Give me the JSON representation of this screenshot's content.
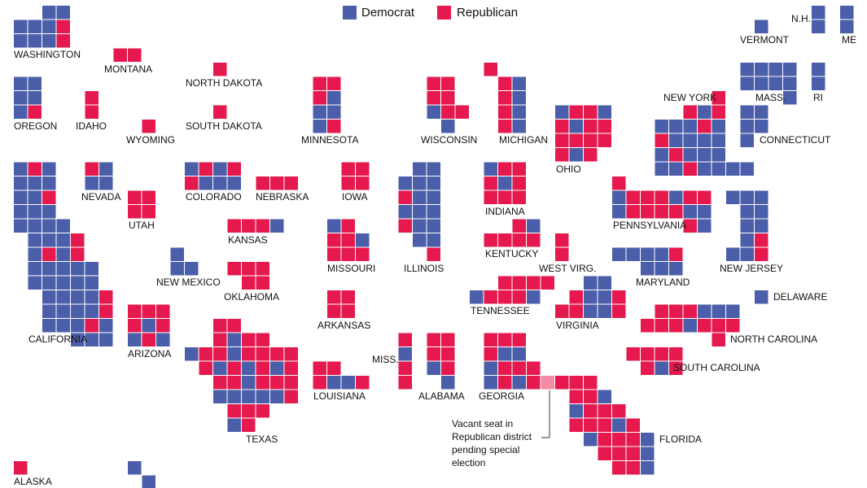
{
  "legend": [
    {
      "label": "Democrat",
      "color": "#4b5ea9"
    },
    {
      "label": "Republican",
      "color": "#e5194d"
    }
  ],
  "vacant_color": "#f48aa4",
  "states": [
    "WASHINGTON",
    "MONTANA",
    "NORTH DAKOTA",
    "OREGON",
    "IDAHO",
    "SOUTH DAKOTA",
    "WYOMING",
    "MINNESOTA",
    "WISCONSIN",
    "MICHIGAN",
    "VERMONT",
    "N.H.",
    "ME",
    "MASS.",
    "RI",
    "NEW YORK",
    "CONNECTICUT",
    "OHIO",
    "NEVADA",
    "COLORADO",
    "NEBRASKA",
    "IOWA",
    "INDIANA",
    "UTAH",
    "PENNSYLVANIA",
    "KANSAS",
    "KENTUCKY",
    "WEST VIRG.",
    "MISSOURI",
    "ILLINOIS",
    "NEW JERSEY",
    "NEW MEXICO",
    "MARYLAND",
    "OKLAHOMA",
    "DELAWARE",
    "TENNESSEE",
    "ARKANSAS",
    "VIRGINIA",
    "CALIFORNIA",
    "NORTH CAROLINA",
    "ARIZONA",
    "MISS.",
    "SOUTH CAROLINA",
    "LOUISIANA",
    "ALABAMA",
    "GEORGIA",
    "TEXAS",
    "FLORIDA",
    "ALASKA"
  ],
  "annotation": [
    "Vacant seat in",
    "Republican district",
    "pending special",
    "election"
  ]
}
